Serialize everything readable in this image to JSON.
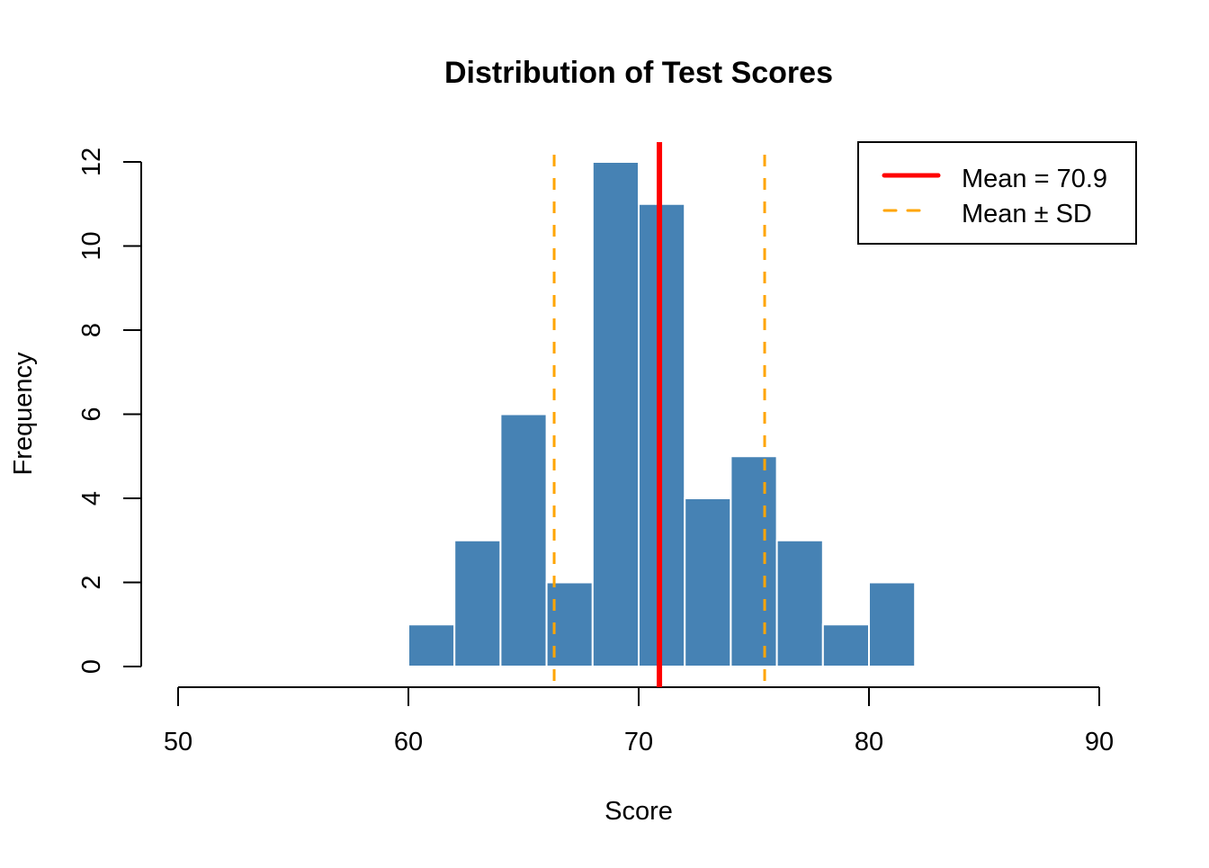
{
  "chart_data": {
    "type": "bar",
    "title": "Distribution of Test Scores",
    "xlabel": "Score",
    "ylabel": "Frequency",
    "xlim": [
      50,
      90
    ],
    "ylim": [
      0,
      12
    ],
    "xticks": [
      50,
      60,
      70,
      80,
      90
    ],
    "yticks": [
      0,
      2,
      4,
      6,
      8,
      10,
      12
    ],
    "bin_edges": [
      60,
      62,
      64,
      66,
      68,
      70,
      72,
      74,
      76,
      78,
      80,
      82
    ],
    "values": [
      1,
      3,
      6,
      2,
      12,
      11,
      4,
      5,
      3,
      1,
      2
    ],
    "bar_color": "#4682B4",
    "mean": 70.9,
    "sd_lines": [
      66.33,
      75.47
    ],
    "mean_color": "#FF0000",
    "sd_color": "#FFA500",
    "legend": {
      "position": "top-right",
      "entries": [
        "Mean = 70.9",
        "Mean ± SD"
      ]
    }
  }
}
